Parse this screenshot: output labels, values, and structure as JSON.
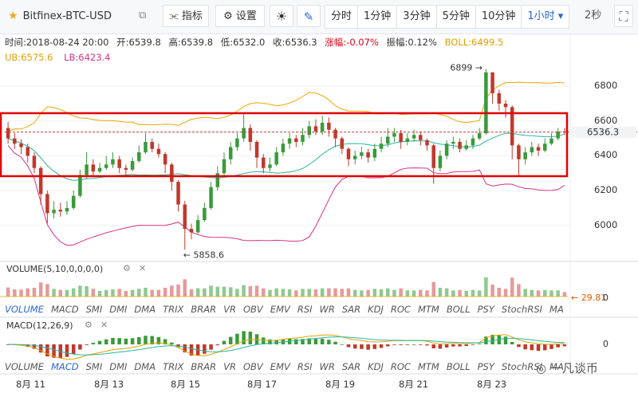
{
  "toolbar": {
    "symbol": "Bitfinex-BTC-USD",
    "indicators_label": "指标",
    "settings_label": "设置",
    "intervals": [
      "分时",
      "1分钟",
      "3分钟",
      "5分钟",
      "10分钟",
      "1小时"
    ],
    "active_interval": "1小时",
    "refresh": "2秒"
  },
  "info": {
    "time": "时间:2018-08-24 20:00",
    "open": "开:6539.8",
    "high": "高:6539.8",
    "low": "低:6532.0",
    "close": "收:6536.3",
    "change": "涨幅:-0.07%",
    "amplitude": "振幅:0.12%",
    "boll": "BOLL:6499.5",
    "ub": "UB:6575.6",
    "lb": "LB:6423.4"
  },
  "volume_panel": {
    "title": "VOLUME(5,10,0,0,0,0)",
    "value_label": "29.81",
    "zero_label": "0"
  },
  "macd_panel": {
    "title": "MACD(12,26,9)",
    "zero_label": "0"
  },
  "indicator_tabs": [
    "VOLUME",
    "MACD",
    "SMI",
    "DMI",
    "DMA",
    "TRIX",
    "BRAR",
    "VR",
    "OBV",
    "EMV",
    "RSI",
    "WR",
    "SAR",
    "KDJ",
    "ROC",
    "MTM",
    "BOLL",
    "PSY",
    "StochRSI",
    "MA"
  ],
  "watermark": "一凡谈币",
  "chart_data": {
    "type": "candlestick",
    "ylim": [
      5820,
      6920
    ],
    "yticks": [
      6000,
      6200,
      6400,
      6600,
      6800
    ],
    "last_price": "6536.3",
    "annotations": {
      "high": "6899",
      "low": "5858.6"
    },
    "xlabels": [
      "8月 11",
      "8月 13",
      "8月 15",
      "8月 17",
      "8月 19",
      "8月 21",
      "8月 23"
    ],
    "bars": [
      [
        6560,
        6500,
        6595,
        6470
      ],
      [
        6500,
        6470,
        6530,
        6440
      ],
      [
        6470,
        6450,
        6495,
        6410
      ],
      [
        6450,
        6400,
        6470,
        6360
      ],
      [
        6400,
        6330,
        6420,
        6300
      ],
      [
        6330,
        6180,
        6340,
        6120
      ],
      [
        6180,
        6070,
        6200,
        6010
      ],
      [
        6070,
        6090,
        6140,
        6040
      ],
      [
        6090,
        6080,
        6130,
        6050
      ],
      [
        6080,
        6100,
        6140,
        6060
      ],
      [
        6100,
        6170,
        6200,
        6090
      ],
      [
        6170,
        6290,
        6320,
        6160
      ],
      [
        6290,
        6350,
        6420,
        6270
      ],
      [
        6350,
        6310,
        6380,
        6280
      ],
      [
        6310,
        6330,
        6360,
        6300
      ],
      [
        6330,
        6350,
        6400,
        6320
      ],
      [
        6350,
        6380,
        6420,
        6330
      ],
      [
        6380,
        6330,
        6400,
        6300
      ],
      [
        6330,
        6320,
        6350,
        6290
      ],
      [
        6320,
        6370,
        6390,
        6310
      ],
      [
        6370,
        6420,
        6460,
        6360
      ],
      [
        6420,
        6480,
        6530,
        6410
      ],
      [
        6480,
        6440,
        6500,
        6420
      ],
      [
        6440,
        6410,
        6470,
        6390
      ],
      [
        6410,
        6350,
        6420,
        6300
      ],
      [
        6350,
        6250,
        6360,
        6200
      ],
      [
        6250,
        6120,
        6260,
        6080
      ],
      [
        6120,
        5980,
        6140,
        5860
      ],
      [
        5980,
        5960,
        6010,
        5920
      ],
      [
        5960,
        6030,
        6060,
        5950
      ],
      [
        6030,
        6100,
        6130,
        6020
      ],
      [
        6100,
        6220,
        6250,
        6090
      ],
      [
        6220,
        6300,
        6340,
        6200
      ],
      [
        6300,
        6380,
        6420,
        6280
      ],
      [
        6380,
        6450,
        6480,
        6350
      ],
      [
        6450,
        6500,
        6530,
        6430
      ],
      [
        6500,
        6560,
        6650,
        6480
      ],
      [
        6560,
        6480,
        6580,
        6430
      ],
      [
        6480,
        6390,
        6490,
        6330
      ],
      [
        6390,
        6330,
        6410,
        6300
      ],
      [
        6330,
        6350,
        6390,
        6310
      ],
      [
        6350,
        6420,
        6450,
        6340
      ],
      [
        6420,
        6470,
        6500,
        6400
      ],
      [
        6470,
        6500,
        6530,
        6440
      ],
      [
        6500,
        6480,
        6520,
        6450
      ],
      [
        6480,
        6520,
        6560,
        6460
      ],
      [
        6520,
        6570,
        6600,
        6500
      ],
      [
        6570,
        6540,
        6610,
        6520
      ],
      [
        6540,
        6590,
        6630,
        6520
      ],
      [
        6590,
        6550,
        6620,
        6510
      ],
      [
        6550,
        6500,
        6560,
        6450
      ],
      [
        6500,
        6440,
        6510,
        6410
      ],
      [
        6440,
        6380,
        6450,
        6340
      ],
      [
        6380,
        6400,
        6430,
        6350
      ],
      [
        6400,
        6420,
        6450,
        6380
      ],
      [
        6420,
        6390,
        6440,
        6360
      ],
      [
        6390,
        6440,
        6470,
        6370
      ],
      [
        6440,
        6470,
        6510,
        6420
      ],
      [
        6470,
        6510,
        6560,
        6450
      ],
      [
        6510,
        6530,
        6560,
        6480
      ],
      [
        6530,
        6480,
        6550,
        6440
      ],
      [
        6480,
        6500,
        6530,
        6460
      ],
      [
        6500,
        6520,
        6550,
        6480
      ],
      [
        6520,
        6490,
        6540,
        6460
      ],
      [
        6490,
        6460,
        6500,
        6430
      ],
      [
        6460,
        6330,
        6470,
        6240
      ],
      [
        6330,
        6400,
        6430,
        6310
      ],
      [
        6400,
        6470,
        6490,
        6380
      ],
      [
        6470,
        6480,
        6510,
        6440
      ],
      [
        6480,
        6440,
        6500,
        6420
      ],
      [
        6440,
        6460,
        6490,
        6430
      ],
      [
        6460,
        6500,
        6520,
        6440
      ],
      [
        6500,
        6530,
        6560,
        6490
      ],
      [
        6530,
        6880,
        6899,
        6520
      ],
      [
        6880,
        6760,
        6880,
        6700
      ],
      [
        6760,
        6700,
        6780,
        6660
      ],
      [
        6700,
        6680,
        6720,
        6620
      ],
      [
        6680,
        6460,
        6690,
        6380
      ],
      [
        6460,
        6380,
        6470,
        6280
      ],
      [
        6380,
        6420,
        6450,
        6350
      ],
      [
        6420,
        6450,
        6480,
        6400
      ],
      [
        6450,
        6430,
        6470,
        6400
      ],
      [
        6430,
        6470,
        6500,
        6420
      ],
      [
        6470,
        6500,
        6530,
        6460
      ],
      [
        6500,
        6540,
        6560,
        6490
      ],
      [
        6540,
        6536,
        6560,
        6520
      ]
    ]
  }
}
